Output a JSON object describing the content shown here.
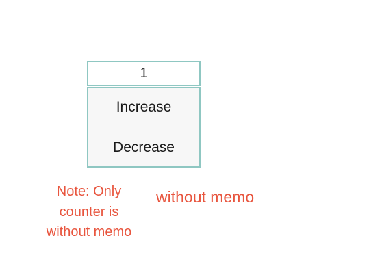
{
  "counter": {
    "value": "1",
    "increase_label": "Increase",
    "decrease_label": "Decrease"
  },
  "note": {
    "text": "Note: Only counter is without memo"
  },
  "memo_status": {
    "text": "without memo"
  },
  "colors": {
    "accent_border": "#8fc7c2",
    "note_text": "#e8553e"
  }
}
